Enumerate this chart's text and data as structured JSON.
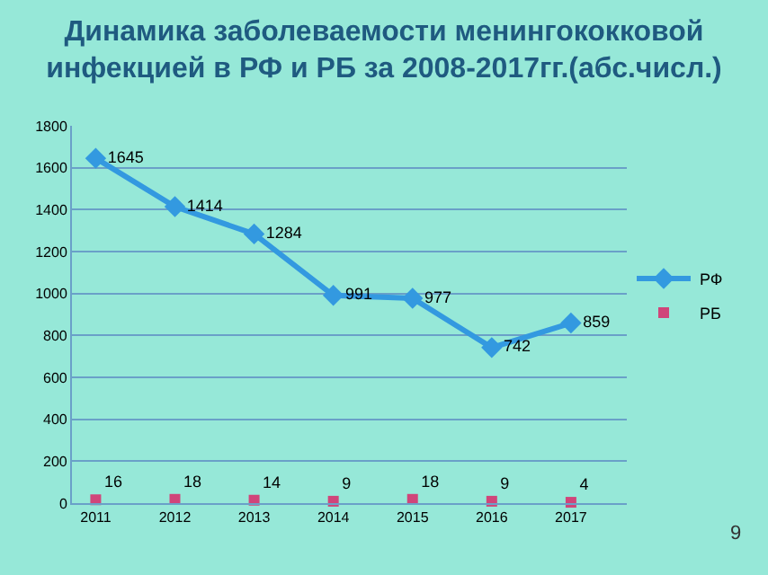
{
  "chart_data": {
    "type": "line",
    "title": "Динамика заболеваемости менингококковой\nинфекцией в РФ и РБ за 2008-2017гг.(абс.числ.)",
    "categories": [
      "2011",
      "2012",
      "2013",
      "2014",
      "2015",
      "2016",
      "2017"
    ],
    "series": [
      {
        "name": "РФ",
        "color": "#3399e0",
        "values": [
          1645,
          1414,
          1284,
          991,
          977,
          742,
          859
        ],
        "marker": "diamond"
      },
      {
        "name": "РБ",
        "color": "#d0457a",
        "type": "scatter",
        "values": [
          16,
          18,
          14,
          9,
          18,
          9,
          4
        ],
        "marker": "square"
      }
    ],
    "ylim": [
      0,
      1800
    ],
    "yticks": [
      0,
      200,
      400,
      600,
      800,
      1000,
      1200,
      1400,
      1600,
      1800
    ],
    "grid": "y",
    "legend": "right",
    "data_labels": true,
    "annotations": [
      "9"
    ]
  }
}
